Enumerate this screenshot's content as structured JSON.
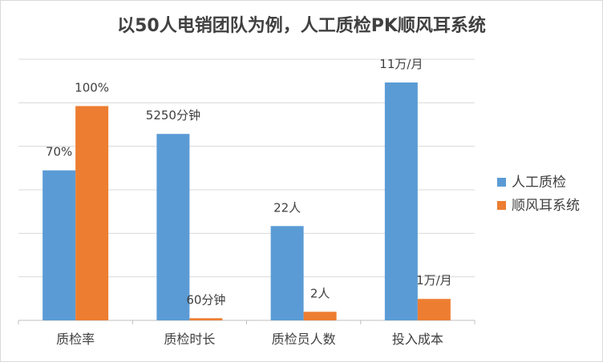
{
  "chart_data": {
    "type": "bar",
    "title": "以50人电销团队为例，人工质检PK顺风耳系统",
    "categories": [
      "质检率",
      "质检时长",
      "质检员人数",
      "投入成本"
    ],
    "series": [
      {
        "name": "人工质检",
        "color": "#5b9bd5",
        "values": [
          0.7,
          0.87,
          0.44,
          1.11
        ],
        "labels": [
          "70%",
          "5250分钟",
          "22人",
          "11万/月"
        ]
      },
      {
        "name": "顺风耳系统",
        "color": "#ed7d31",
        "values": [
          1.0,
          0.01,
          0.04,
          0.1
        ],
        "labels": [
          "100%",
          "60分钟",
          "2人",
          "1万/月"
        ]
      }
    ],
    "ylim": [
      0,
      1.11
    ],
    "grid": true,
    "legend": "right",
    "axis_labels_shown": false
  }
}
